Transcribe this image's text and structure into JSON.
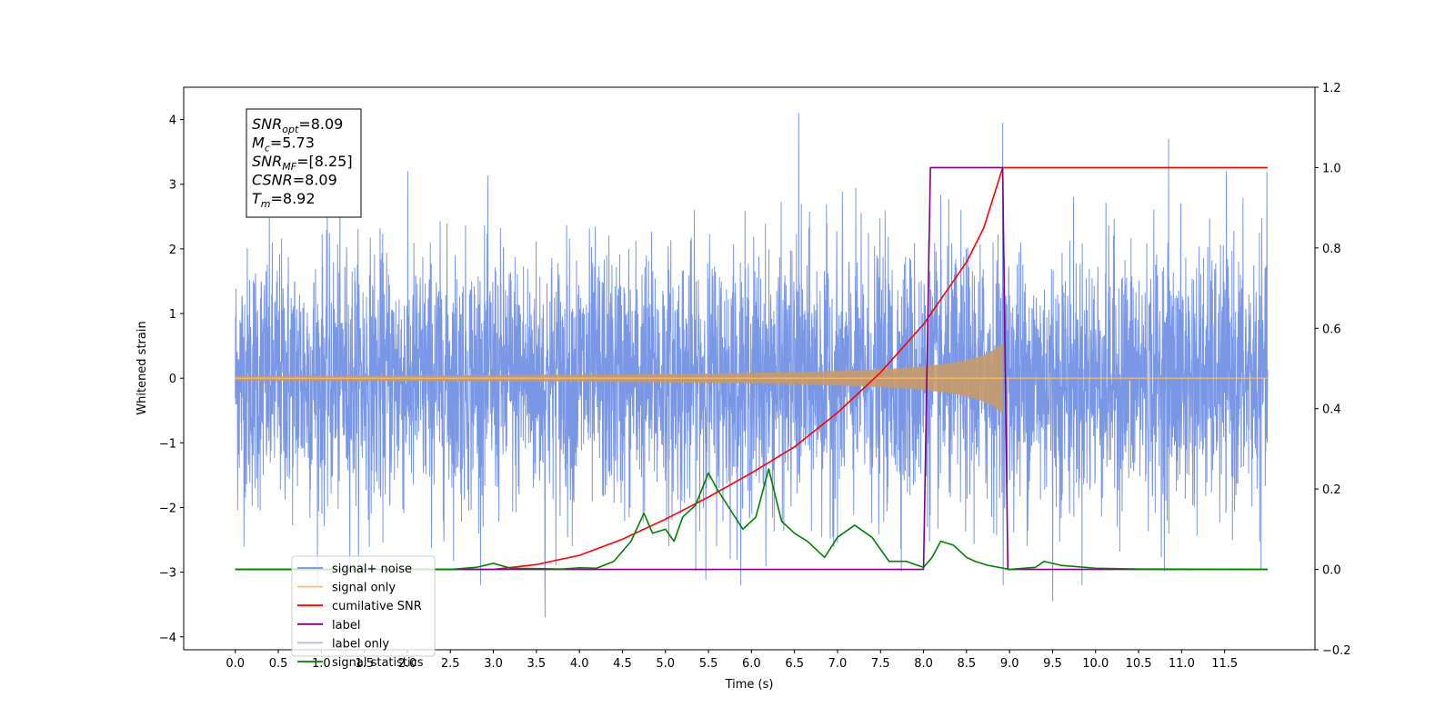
{
  "chart_data": {
    "type": "line",
    "title": "",
    "xlabel": "Time (s)",
    "ylabel": "Whitened strain",
    "xlim": [
      -0.6,
      12.55
    ],
    "ylim": [
      -4.2,
      4.5
    ],
    "y2lim": [
      -0.2,
      1.2
    ],
    "x_ticks": [
      0.0,
      0.5,
      1.0,
      1.5,
      2.0,
      2.5,
      3.0,
      3.5,
      4.0,
      4.5,
      5.0,
      5.5,
      6.0,
      6.5,
      7.0,
      7.5,
      8.0,
      8.5,
      9.0,
      9.5,
      10.0,
      10.5,
      11.0,
      11.5
    ],
    "x_tick_labels": [
      "0.0",
      "0.5",
      "1.0",
      "1.5",
      "2.0",
      "2.5",
      "3.0",
      "3.5",
      "4.0",
      "4.5",
      "5.0",
      "5.5",
      "6.0",
      "6.5",
      "7.0",
      "7.5",
      "8.0",
      "8.5",
      "9.0",
      "9.5",
      "10.0",
      "10.5",
      "11.0",
      "11.5"
    ],
    "y_ticks": [
      -4,
      -3,
      -2,
      -1,
      0,
      1,
      2,
      3,
      4
    ],
    "y_tick_labels": [
      "−4",
      "−3",
      "−2",
      "−1",
      "0",
      "1",
      "2",
      "3",
      "4"
    ],
    "y2_ticks": [
      -0.2,
      0.0,
      0.2,
      0.4,
      0.6,
      0.8,
      1.0,
      1.2
    ],
    "y2_tick_labels": [
      "−0.2",
      "0.0",
      "0.2",
      "0.4",
      "0.6",
      "0.8",
      "1.0",
      "1.2"
    ],
    "legend_position": "lower-left",
    "grid": false,
    "info_box": [
      {
        "sym": "SNR",
        "sub": "opt",
        "val": "=8.09"
      },
      {
        "sym": "M",
        "sub": "c",
        "val": "=5.73"
      },
      {
        "sym": "SNR",
        "sub": "MF",
        "val": "=[8.25]"
      },
      {
        "sym": "CSNR",
        "sub": "",
        "val": "=8.09"
      },
      {
        "sym": "T",
        "sub": "m",
        "val": "=8.92"
      }
    ],
    "series": [
      {
        "name": "signal+ noise",
        "color": "#7391e5",
        "axis": "left",
        "kind": "noise",
        "x_range": [
          0.0,
          12.0
        ],
        "typical_amplitude": 1.6,
        "peak_values": [
          {
            "x": 6.55,
            "y": 4.1
          },
          {
            "x": 8.92,
            "y": 3.95
          },
          {
            "x": 10.85,
            "y": 3.7
          },
          {
            "x": 3.6,
            "y": -3.7
          },
          {
            "x": 9.5,
            "y": -3.45
          }
        ]
      },
      {
        "name": "signal only",
        "color": "#ffbf66",
        "axis": "left",
        "kind": "chirp",
        "x_range": [
          0.0,
          12.0
        ],
        "merger_time": 8.92,
        "peak_amplitude": 0.55
      },
      {
        "name": "cumilative SNR",
        "color": "#ff0000",
        "axis": "right",
        "x": [
          0.0,
          3.0,
          3.5,
          4.0,
          4.5,
          5.0,
          5.5,
          6.0,
          6.5,
          7.0,
          7.5,
          8.0,
          8.5,
          8.7,
          8.92,
          9.5,
          10.0,
          11.0,
          12.0
        ],
        "y": [
          0.0,
          0.0,
          0.012,
          0.035,
          0.075,
          0.125,
          0.18,
          0.24,
          0.305,
          0.39,
          0.49,
          0.61,
          0.765,
          0.85,
          1.0,
          1.0,
          1.0,
          1.0,
          1.0
        ]
      },
      {
        "name": "label",
        "color": "#800080",
        "axis": "right",
        "x": [
          0.0,
          8.0,
          8.08,
          8.92,
          8.98,
          12.0
        ],
        "y": [
          0.0,
          0.0,
          1.0,
          1.0,
          0.0,
          0.0
        ]
      },
      {
        "name": "label only",
        "color": "#b9b9d2",
        "axis": "right",
        "hidden_by_overlap": true,
        "x": [],
        "y": []
      },
      {
        "name": "signal statistics",
        "color": "#008000",
        "axis": "right",
        "x": [
          0.0,
          2.5,
          2.8,
          3.0,
          3.2,
          3.5,
          3.8,
          4.0,
          4.2,
          4.4,
          4.6,
          4.75,
          4.85,
          5.0,
          5.1,
          5.2,
          5.35,
          5.5,
          5.6,
          5.75,
          5.9,
          6.05,
          6.2,
          6.35,
          6.5,
          6.65,
          6.85,
          7.0,
          7.2,
          7.4,
          7.6,
          7.8,
          8.0,
          8.1,
          8.2,
          8.35,
          8.5,
          8.6,
          8.75,
          9.0,
          9.3,
          9.4,
          9.6,
          10.0,
          10.5,
          12.0
        ],
        "y": [
          0.0,
          0.0,
          0.005,
          0.015,
          0.003,
          0.002,
          0.001,
          0.004,
          0.003,
          0.02,
          0.07,
          0.14,
          0.09,
          0.1,
          0.07,
          0.13,
          0.16,
          0.24,
          0.2,
          0.15,
          0.1,
          0.13,
          0.25,
          0.12,
          0.09,
          0.07,
          0.03,
          0.08,
          0.11,
          0.08,
          0.02,
          0.02,
          0.005,
          0.03,
          0.07,
          0.06,
          0.03,
          0.02,
          0.01,
          0.0,
          0.005,
          0.02,
          0.01,
          0.003,
          0.001,
          0.0
        ]
      }
    ]
  }
}
